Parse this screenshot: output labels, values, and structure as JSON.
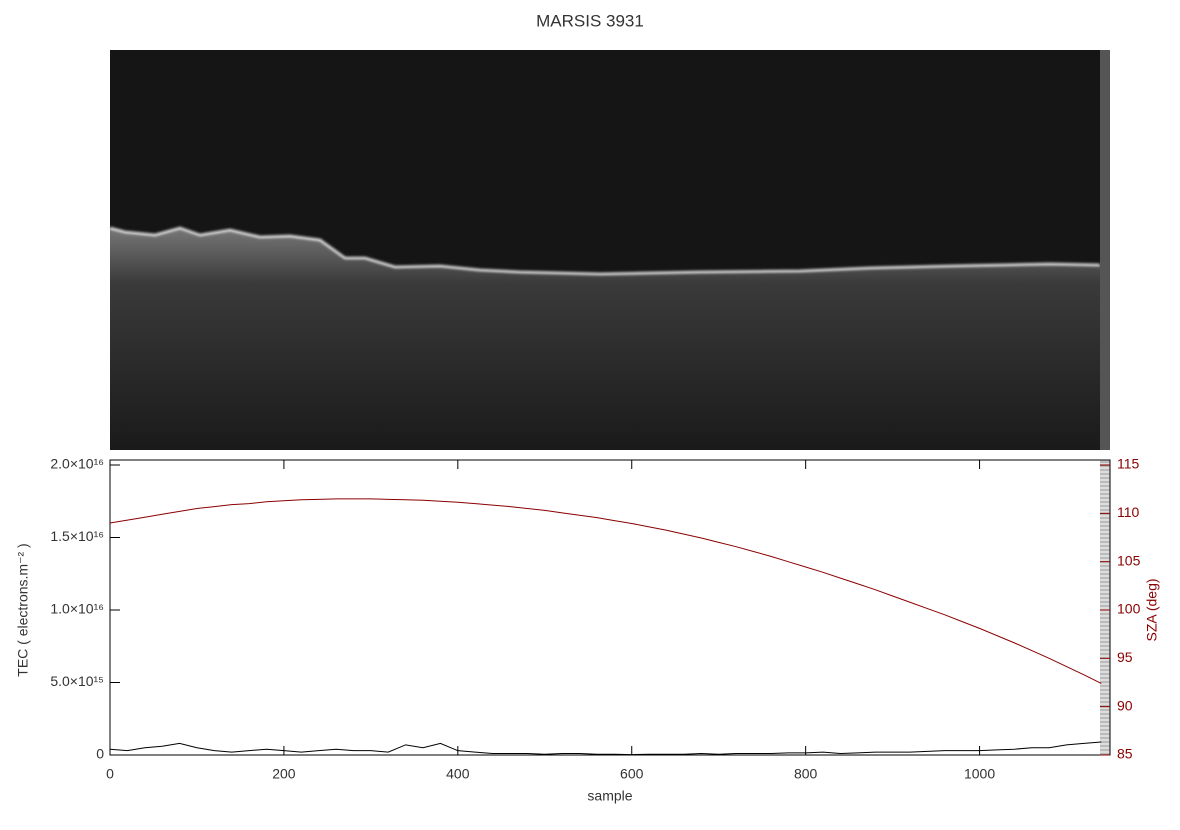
{
  "chart_data": {
    "type": "line",
    "title": "MARSIS 3931",
    "xlabel": "sample",
    "ylabel": "TEC ( electrons.m⁻² )",
    "y2label": "SZA (deg)",
    "x": [
      0,
      20,
      40,
      60,
      80,
      100,
      120,
      140,
      160,
      180,
      200,
      220,
      240,
      260,
      280,
      300,
      320,
      340,
      360,
      380,
      400,
      420,
      440,
      460,
      480,
      500,
      520,
      540,
      560,
      580,
      600,
      620,
      640,
      660,
      680,
      700,
      720,
      740,
      760,
      780,
      800,
      820,
      840,
      860,
      880,
      900,
      920,
      940,
      960,
      980,
      1000,
      1020,
      1040,
      1060,
      1080,
      1100,
      1120,
      1140
    ],
    "series": [
      {
        "color": "#000000",
        "values": [
          400000000000000.0,
          300000000000000.0,
          500000000000000.0,
          600000000000000.0,
          800000000000000.0,
          500000000000000.0,
          300000000000000.0,
          200000000000000.0,
          300000000000000.0,
          400000000000000.0,
          300000000000000.0,
          200000000000000.0,
          300000000000000.0,
          400000000000000.0,
          300000000000000.0,
          300000000000000.0,
          200000000000000.0,
          700000000000000.0,
          500000000000000.0,
          800000000000000.0,
          300000000000000.0,
          200000000000000.0,
          100000000000000.0,
          100000000000000.0,
          100000000000000.0,
          50000000000000.0,
          100000000000000.0,
          100000000000000.0,
          50000000000000.0,
          50000000000000.0,
          30000000000000.0,
          50000000000000.0,
          50000000000000.0,
          50000000000000.0,
          100000000000000.0,
          50000000000000.0,
          100000000000000.0,
          100000000000000.0,
          100000000000000.0,
          150000000000000.0,
          150000000000000.0,
          200000000000000.0,
          100000000000000.0,
          150000000000000.0,
          200000000000000.0,
          200000000000000.0,
          200000000000000.0,
          250000000000000.0,
          300000000000000.0,
          300000000000000.0,
          300000000000000.0,
          350000000000000.0,
          400000000000000.0,
          500000000000000.0,
          500000000000000.0,
          700000000000000.0,
          800000000000000.0,
          900000000000000.0
        ]
      },
      {
        "color": "#8b0000",
        "axis": "y2",
        "values": [
          109.0,
          109.3,
          109.6,
          109.9,
          110.2,
          110.5,
          110.7,
          110.9,
          111.0,
          111.2,
          111.3,
          111.4,
          111.45,
          111.5,
          111.5,
          111.5,
          111.45,
          111.4,
          111.35,
          111.25,
          111.15,
          111.0,
          110.85,
          110.7,
          110.5,
          110.3,
          110.05,
          109.8,
          109.55,
          109.25,
          108.95,
          108.6,
          108.25,
          107.85,
          107.45,
          107.0,
          106.55,
          106.05,
          105.55,
          105.0,
          104.45,
          103.9,
          103.3,
          102.7,
          102.1,
          101.45,
          100.8,
          100.15,
          99.5,
          98.8,
          98.1,
          97.35,
          96.6,
          95.8,
          95.0,
          94.15,
          93.3,
          92.4
        ]
      }
    ],
    "xlim": [
      0,
      1150
    ],
    "xticks": [
      0,
      200,
      400,
      600,
      800,
      1000
    ],
    "ylim": [
      0,
      2e+16
    ],
    "yticks": [
      0,
      {
        "value": 5000000000000000.0,
        "label": "5.0×10¹⁵"
      },
      {
        "value": 1e+16,
        "label": "1.0×10¹⁶"
      },
      {
        "value": 1.5e+16,
        "label": "1.5×10¹⁶"
      },
      {
        "value": 2e+16,
        "label": "2.0×10¹⁶"
      }
    ],
    "y2lim": [
      85,
      115
    ],
    "y2ticks": [
      85,
      90,
      95,
      100,
      105,
      110,
      115
    ],
    "y2color": "#8b0000"
  }
}
